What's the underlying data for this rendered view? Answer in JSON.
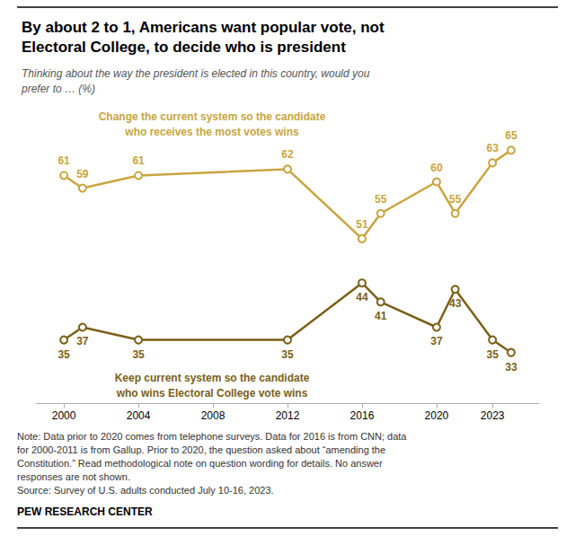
{
  "chart_data": {
    "type": "line",
    "title": "By about 2 to 1, Americans want popular vote, not\nElectoral College, to decide who is president",
    "subtitle": "Thinking about the way the president is elected in this country, would you\nprefer to … (%)",
    "annotations": [
      "Note: Data prior to 2020 comes from telephone surveys. Data for 2016 is from CNN; data\nfor 2000-2011 is from Gallup. Prior to 2020, the question asked about “amending the\nConstitution.” Read methodological note on question wording for details. No answer\nresponses are not shown.\nSource: Survey of U.S. adults conducted July 10-16, 2023.",
      "PEW RESEARCH CENTER"
    ],
    "x": [
      2000,
      2001,
      2004,
      2012,
      2016,
      2017,
      2020,
      2021,
      2023,
      2024
    ],
    "series": [
      {
        "name": "Change the current system so the candidate\nwho receives the most votes wins",
        "color": "#c8a540",
        "values": [
          61,
          59,
          61,
          62,
          51,
          55,
          60,
          55,
          63,
          65
        ]
      },
      {
        "name": "Keep current system so the candidate\nwho wins Electoral College vote wins",
        "color": "#7a6018",
        "values": [
          35,
          37,
          35,
          35,
          44,
          41,
          37,
          43,
          35,
          33
        ]
      }
    ],
    "xlim": [
      1998.5,
      2025.5
    ],
    "xticks": [
      2000,
      2004,
      2008,
      2012,
      2016,
      2020,
      2023
    ],
    "ylim": [
      25,
      72
    ],
    "marker": "circle",
    "data_labels": true,
    "tick_labels": "x",
    "grid": false
  }
}
